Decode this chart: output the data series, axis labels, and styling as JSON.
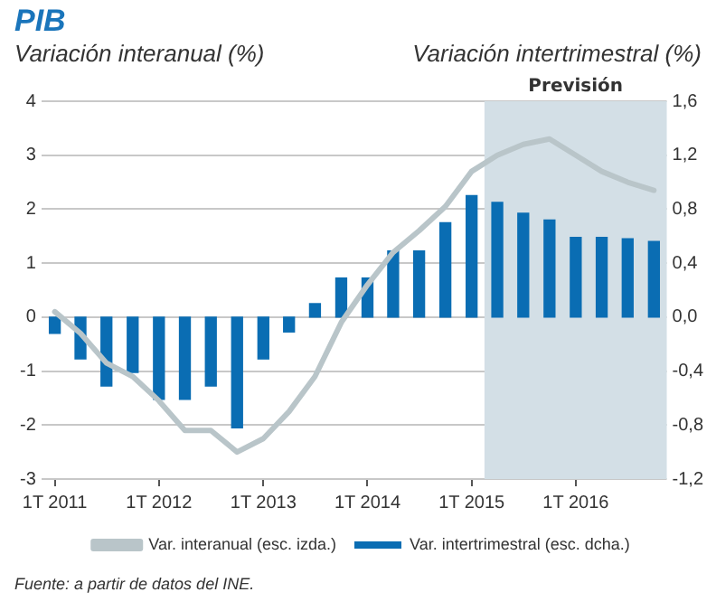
{
  "chart_data": {
    "type": "bar",
    "title": "PIB",
    "ylabel": "Variación interanual (%)",
    "y2label": "Variación intertrimestral (%)",
    "x": [
      "2011-01",
      "2011-04",
      "2011-07",
      "2011-10",
      "2012-01",
      "2012-04",
      "2012-07",
      "2012-10",
      "2013-01",
      "2013-04",
      "2013-07",
      "2013-10",
      "2014-01",
      "2014-04",
      "2014-07",
      "2014-10",
      "2015-01",
      "2015-04",
      "2015-07",
      "2015-10",
      "2016-01",
      "2016-04",
      "2016-07",
      "2016-10"
    ],
    "xlim": [
      "2010-11-15",
      "2016-11-15"
    ],
    "xticks": [
      {
        "value": "2011-01",
        "label": "1T 2011"
      },
      {
        "value": "2012-01",
        "label": "1T 2012"
      },
      {
        "value": "2013-01",
        "label": "1T 2013"
      },
      {
        "value": "2014-01",
        "label": "1T 2014"
      },
      {
        "value": "2015-01",
        "label": "1T 2015"
      },
      {
        "value": "2016-01",
        "label": "1T 2016"
      }
    ],
    "series": [
      {
        "name": "Var. interanual (esc. izda.)",
        "type": "line",
        "axis": "y",
        "color": "#b9c5c9",
        "values": [
          0.1,
          -0.3,
          -0.85,
          -1.1,
          -1.55,
          -2.1,
          -2.1,
          -2.5,
          -2.25,
          -1.75,
          -1.1,
          -0.1,
          0.6,
          1.2,
          1.6,
          2.05,
          2.7,
          3.0,
          3.2,
          3.3,
          3.0,
          2.7,
          2.5,
          2.35
        ]
      },
      {
        "name": "Var. intertrimestral (esc. dcha.)",
        "axis": "y2",
        "color": "#0a6db3",
        "values": [
          -0.12,
          -0.31,
          -0.51,
          -0.41,
          -0.61,
          -0.61,
          -0.51,
          -0.82,
          -0.31,
          -0.11,
          0.1,
          0.29,
          0.29,
          0.49,
          0.49,
          0.7,
          0.9,
          0.85,
          0.77,
          0.72,
          0.59,
          0.59,
          0.58,
          0.56
        ]
      }
    ],
    "ylim": [
      -3,
      4
    ],
    "yticks": [
      -3,
      -2,
      -1,
      0,
      1,
      2,
      3,
      4
    ],
    "y2lim": [
      -1.2,
      1.6
    ],
    "y2ticks": [
      {
        "value": -1.2,
        "label": "-1,2"
      },
      {
        "value": -0.8,
        "label": "-0,8"
      },
      {
        "value": -0.4,
        "label": "-0,4"
      },
      {
        "value": 0,
        "label": "0,0"
      },
      {
        "value": 0.4,
        "label": "0,4"
      },
      {
        "value": 0.8,
        "label": "0,8"
      },
      {
        "value": 1.2,
        "label": "1,2"
      },
      {
        "value": 1.6,
        "label": "1,6"
      }
    ],
    "bands": [
      {
        "axis": "x",
        "from": "2015-02-15",
        "to": "2016-11-15",
        "label": "Previsión",
        "color": "#d3dfe6"
      }
    ],
    "grid": "y",
    "legend": "bottom",
    "annotations": [
      "Fuente: a partir de datos del INE."
    ]
  }
}
